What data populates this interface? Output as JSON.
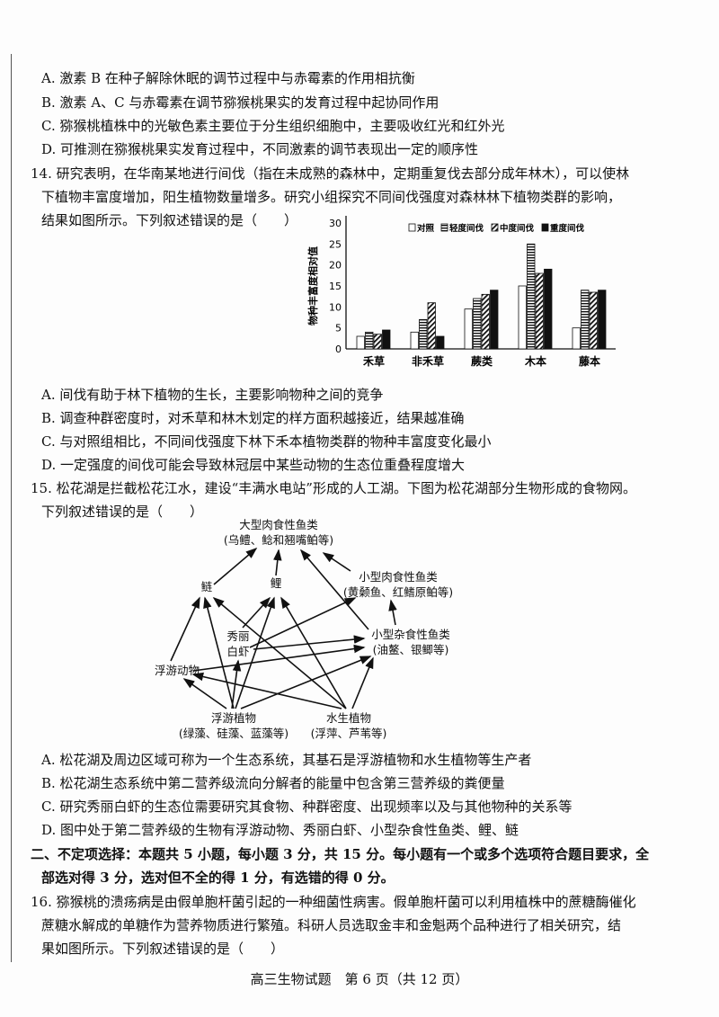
{
  "q13_options": [
    "A. 激素 B 在种子解除休眠的调节过程中与赤霉素的作用相抗衡",
    "B. 激素 A、C 与赤霉素在调节猕猴桃果实的发育过程中起协同作用",
    "C. 猕猴桃植株中的光敏色素主要位于分生组织细胞中，主要吸收红光和红外光",
    "D. 可推测在猕猴桃果实发育过程中，不同激素的调节表现出一定的顺序性"
  ],
  "q14_stem": [
    "14. 研究表明，在华南某地进行间伐（指在未成熟的森林中，定期重复伐去部分成年林木），可以使林",
    "下植物丰富度增加，阳生植物数量增多。研究小组探究不同间伐强度对森林林下植物类群的影响，",
    "结果如图所示。下列叙述错误的是（　　）"
  ],
  "q14_options": [
    "A. 间伐有助于林下植物的生长，主要影响物种之间的竞争",
    "B. 调查种群密度时，对禾草和林木划定的样方面积越接近，结果越准确",
    "C. 与对照组相比，不同间伐强度下林下禾本植物类群的物种丰富度变化最小",
    "D. 一定强度的间伐可能会导致林冠层中某些动物的生态位重叠程度增大"
  ],
  "q15_stem": [
    "15. 松花湖是拦截松花江水，建设“丰满水电站”形成的人工湖。下图为松花湖部分生物形成的食物网。",
    "下列叙述错误的是（　　）"
  ],
  "food_web": {
    "big_carn": [
      "大型肉食性鱼类",
      "(乌鳢、鲶和翘嘴鲌等)"
    ],
    "lian": "鲢",
    "li": "鲤",
    "small_carn": [
      "小型肉食性鱼类",
      "(黄颡鱼、红鳍原鲌等)"
    ],
    "shrimp": [
      "秀丽",
      "白虾"
    ],
    "small_omni": [
      "小型杂食性鱼类",
      "(油鳌、银鲫等)"
    ],
    "zoo": "浮游动物",
    "phyto": [
      "浮游植物",
      "(绿藻、硅藻、蓝藻等)"
    ],
    "aquatic": [
      "水生植物",
      "(浮萍、芦苇等)"
    ]
  },
  "q15_options": [
    "A. 松花湖及周边区域可称为一个生态系统，其基石是浮游植物和水生植物等生产者",
    "B. 松花湖生态系统中第二营养级流向分解者的能量中包含第三营养级的粪便量",
    "C. 研究秀丽白虾的生态位需要研究其食物、种群密度、出现频率以及与其他物种的关系等",
    "D. 图中处于第二营养级的生物有浮游动物、秀丽白虾、小型杂食性鱼类、鲤、鲢"
  ],
  "section2": [
    "二、不定项选择：本题共 5 小题，每小题 3 分，共 15 分。每小题有一个或多个选项符合题目要求，全",
    "部选对得 3 分，选对但不全的得 1 分，有选错的得 0 分。"
  ],
  "q16_stem": [
    "16. 猕猴桃的溃疡病是由假单胞杆菌引起的一种细菌性病害。假单胞杆菌可以利用植株中的蔗糖酶催化",
    "蔗糖水解成的单糖作为营养物质进行繁殖。科研人员选取金丰和金魁两个品种进行了相关研究，结",
    "果如图所示。下列叙述错误的是（　　）"
  ],
  "footer": "高三生物试题　第 6 页（共 12 页）",
  "chart_data": {
    "type": "bar",
    "ylabel": "物种丰富度相对值",
    "xlabel": "",
    "categories": [
      "禾草",
      "非禾草",
      "蕨类",
      "木本",
      "藤本"
    ],
    "yticks": [
      "0",
      "5",
      "10",
      "15",
      "20",
      "25",
      "30"
    ],
    "ylim": [
      0,
      30
    ],
    "legend_position": "top",
    "series": [
      {
        "name": "对照",
        "values": [
          3,
          4,
          9.5,
          15,
          5
        ],
        "pattern": "white"
      },
      {
        "name": "轻度间伐",
        "values": [
          4,
          7,
          12,
          25,
          14
        ],
        "pattern": "horizontal-stripes"
      },
      {
        "name": "中度间伐",
        "values": [
          3.5,
          11,
          13,
          18,
          13.5
        ],
        "pattern": "diagonal-stripes"
      },
      {
        "name": "重度间伐",
        "values": [
          4.5,
          3,
          14,
          19,
          14
        ],
        "pattern": "black"
      }
    ]
  }
}
